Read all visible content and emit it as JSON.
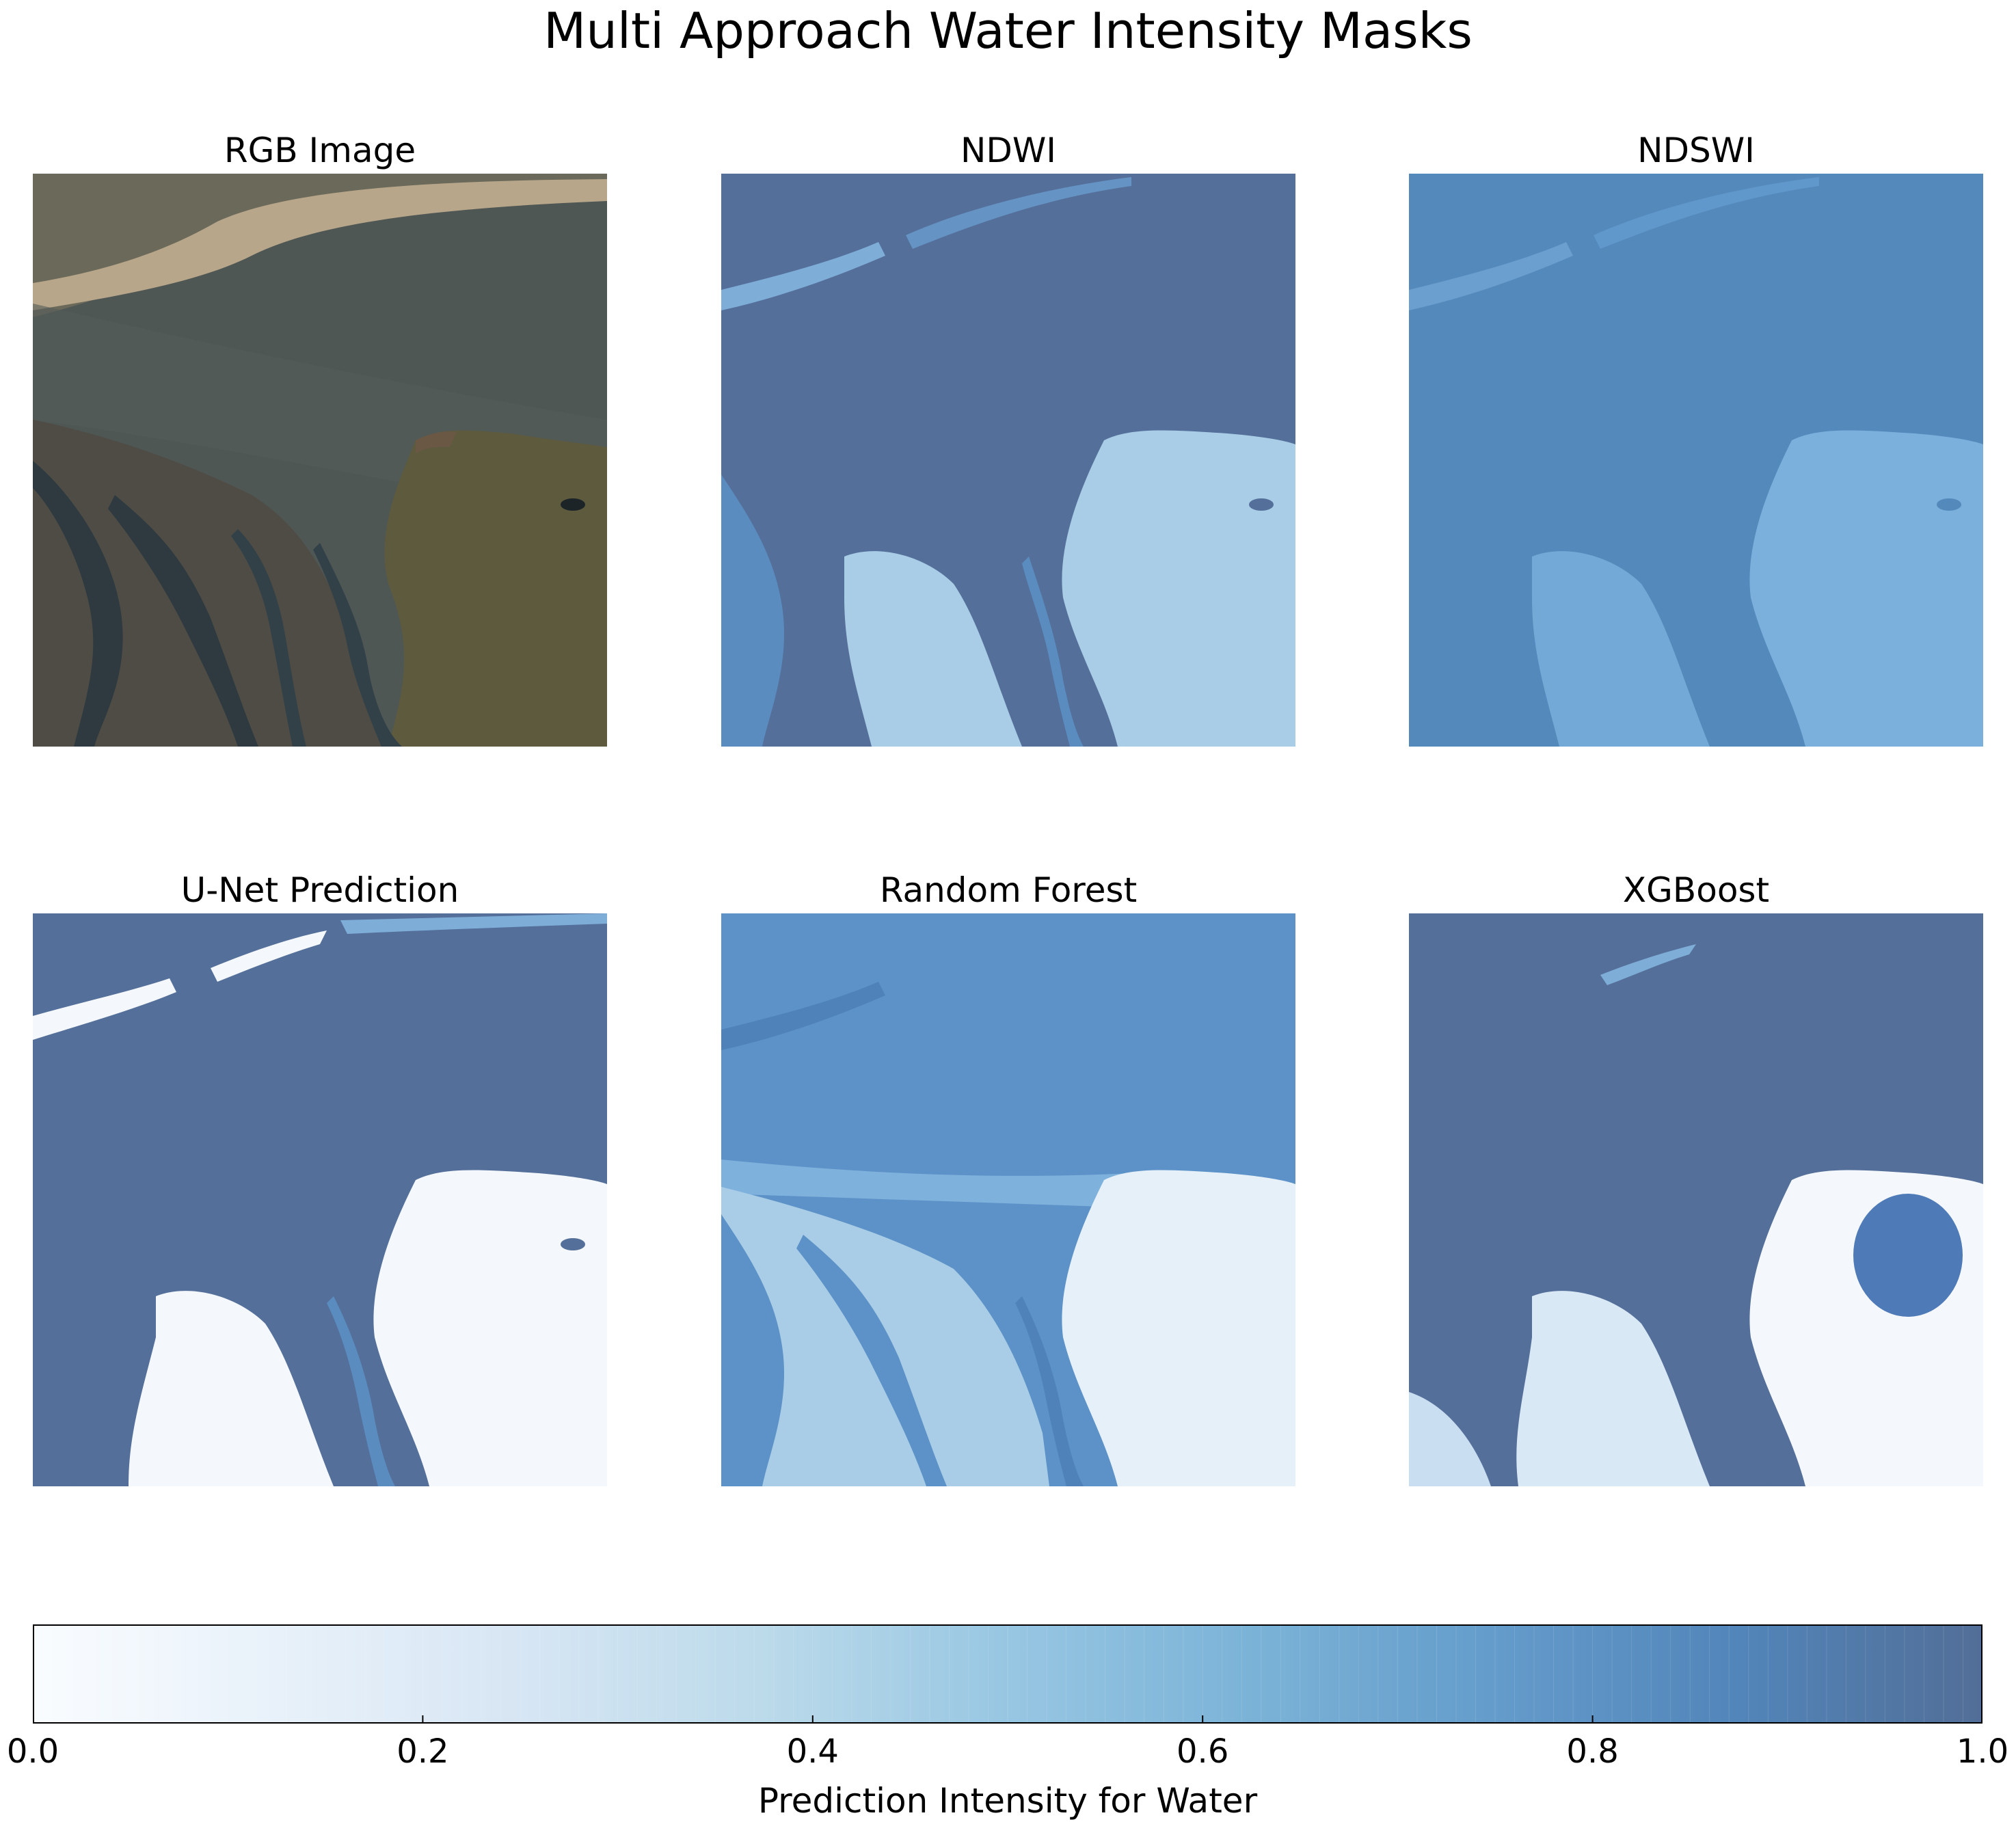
{
  "figure": {
    "title": "Multi Approach Water Intensity Masks"
  },
  "panels": [
    {
      "title": "RGB Image"
    },
    {
      "title": "NDWI"
    },
    {
      "title": "NDSWI"
    },
    {
      "title": "U-Net Prediction"
    },
    {
      "title": "Random Forest"
    },
    {
      "title": "XGBoost"
    }
  ],
  "chart_data": {
    "type": "heatmap",
    "title": "Multi Approach Water Intensity Masks",
    "subplots": [
      "RGB Image",
      "NDWI",
      "NDSWI",
      "U-Net Prediction",
      "Random Forest",
      "XGBoost"
    ],
    "colorbar": {
      "label": "Prediction Intensity for Water",
      "range": [
        0.0,
        1.0
      ],
      "ticks": [
        0.0,
        0.2,
        0.4,
        0.6,
        0.8,
        1.0
      ],
      "tick_labels": [
        "0.0",
        "0.2",
        "0.4",
        "0.6",
        "0.8",
        "1.0"
      ],
      "colormap": "Blues",
      "colormap_stops": [
        "#f7fbff",
        "#deebf7",
        "#c6dbef",
        "#9ecae1",
        "#6baed6",
        "#4292c6",
        "#2171b5",
        "#08519c",
        "#08306b"
      ],
      "bands": 100,
      "alpha": 0.7
    },
    "axes": "off"
  },
  "colors": {
    "ocean_high": "#546f9a",
    "ndswi_water": "#5489bc",
    "rf_water": "#5c92c8",
    "land_light": "#a9cde6",
    "land_white": "#f4f8fc",
    "rgb_water": "#4b5354",
    "rgb_land": "#5d5a3e",
    "rgb_beach": "#b7a68a"
  }
}
